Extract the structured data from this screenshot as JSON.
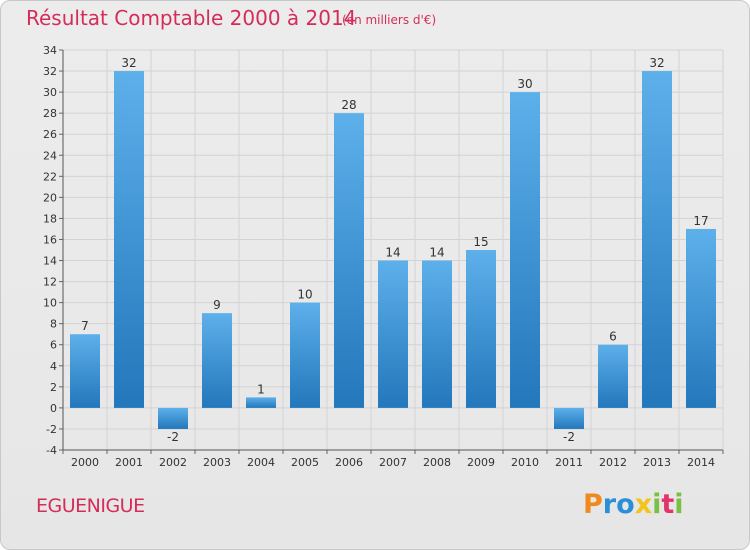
{
  "header": {
    "title": "Résultat Comptable 2000 à 2014",
    "subtitle": "(en milliers d'€)"
  },
  "footer": {
    "commune": "EGUENIGUE",
    "logo_text": "Proxiti"
  },
  "colors": {
    "accent": "#d42d5a",
    "bar_top": "#5db0ea",
    "bar_bottom": "#2377bb"
  },
  "chart_data": {
    "type": "bar",
    "categories": [
      "2000",
      "2001",
      "2002",
      "2003",
      "2004",
      "2005",
      "2006",
      "2007",
      "2008",
      "2009",
      "2010",
      "2011",
      "2012",
      "2013",
      "2014"
    ],
    "values": [
      7,
      32,
      -2,
      9,
      1,
      10,
      28,
      14,
      14,
      15,
      30,
      -2,
      6,
      32,
      17
    ],
    "title": "Résultat Comptable 2000 à 2014",
    "subtitle": "(en milliers d'€)",
    "xlabel": "",
    "ylabel": "",
    "ylim": [
      -4,
      34
    ],
    "yticks": [
      -4,
      -2,
      0,
      2,
      4,
      6,
      8,
      10,
      12,
      14,
      16,
      18,
      20,
      22,
      24,
      26,
      28,
      30,
      32,
      34
    ],
    "grid": true,
    "legend": "none"
  }
}
